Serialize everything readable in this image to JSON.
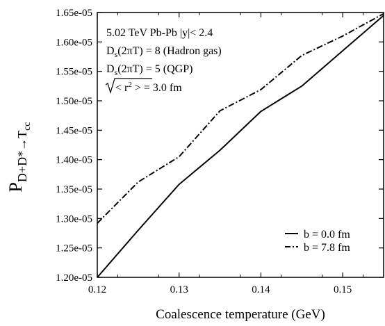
{
  "chart_data": {
    "type": "line",
    "xlabel": "Coalescence temperature (GeV)",
    "ylabel": {
      "base": "P",
      "subscript": "D+D*→T",
      "subsubscript": "cc"
    },
    "xlim": [
      0.12,
      0.155
    ],
    "ylim": [
      1.2e-05,
      1.65e-05
    ],
    "xticks": [
      "0.12",
      "0.13",
      "0.14",
      "0.15"
    ],
    "yticks": [
      "1.20e-05",
      "1.25e-05",
      "1.30e-05",
      "1.35e-05",
      "1.40e-05",
      "1.45e-05",
      "1.50e-05",
      "1.55e-05",
      "1.60e-05",
      "1.65e-05"
    ],
    "grid": false,
    "legend_position": "bottom-right",
    "annotations": {
      "line1": "5.02 TeV Pb-Pb |y|< 2.4",
      "line2": {
        "pre": "D",
        "sub": "s",
        "post": "(2πT) = 8 (Hadron gas)"
      },
      "line3": {
        "pre": "D",
        "sub": "s",
        "post": "(2πT) = 5 (QGP)"
      },
      "line4": {
        "inner": "< r",
        "sup": "2",
        "close": " >",
        "post": " = 3.0 fm"
      }
    },
    "series": [
      {
        "name": "b = 0.0 fm",
        "style": "solid",
        "x": [
          0.12,
          0.125,
          0.13,
          0.135,
          0.14,
          0.145,
          0.15,
          0.155
        ],
        "y": [
          1.2e-05,
          1.28e-05,
          1.358e-05,
          1.416e-05,
          1.482e-05,
          1.525e-05,
          1.585e-05,
          1.645e-05
        ]
      },
      {
        "name": "b = 7.8 fm",
        "style": "dashdot",
        "x": [
          0.12,
          0.125,
          0.13,
          0.135,
          0.14,
          0.145,
          0.15,
          0.155
        ],
        "y": [
          1.292e-05,
          1.362e-05,
          1.405e-05,
          1.483e-05,
          1.519e-05,
          1.577e-05,
          1.61e-05,
          1.648e-05
        ]
      }
    ]
  }
}
